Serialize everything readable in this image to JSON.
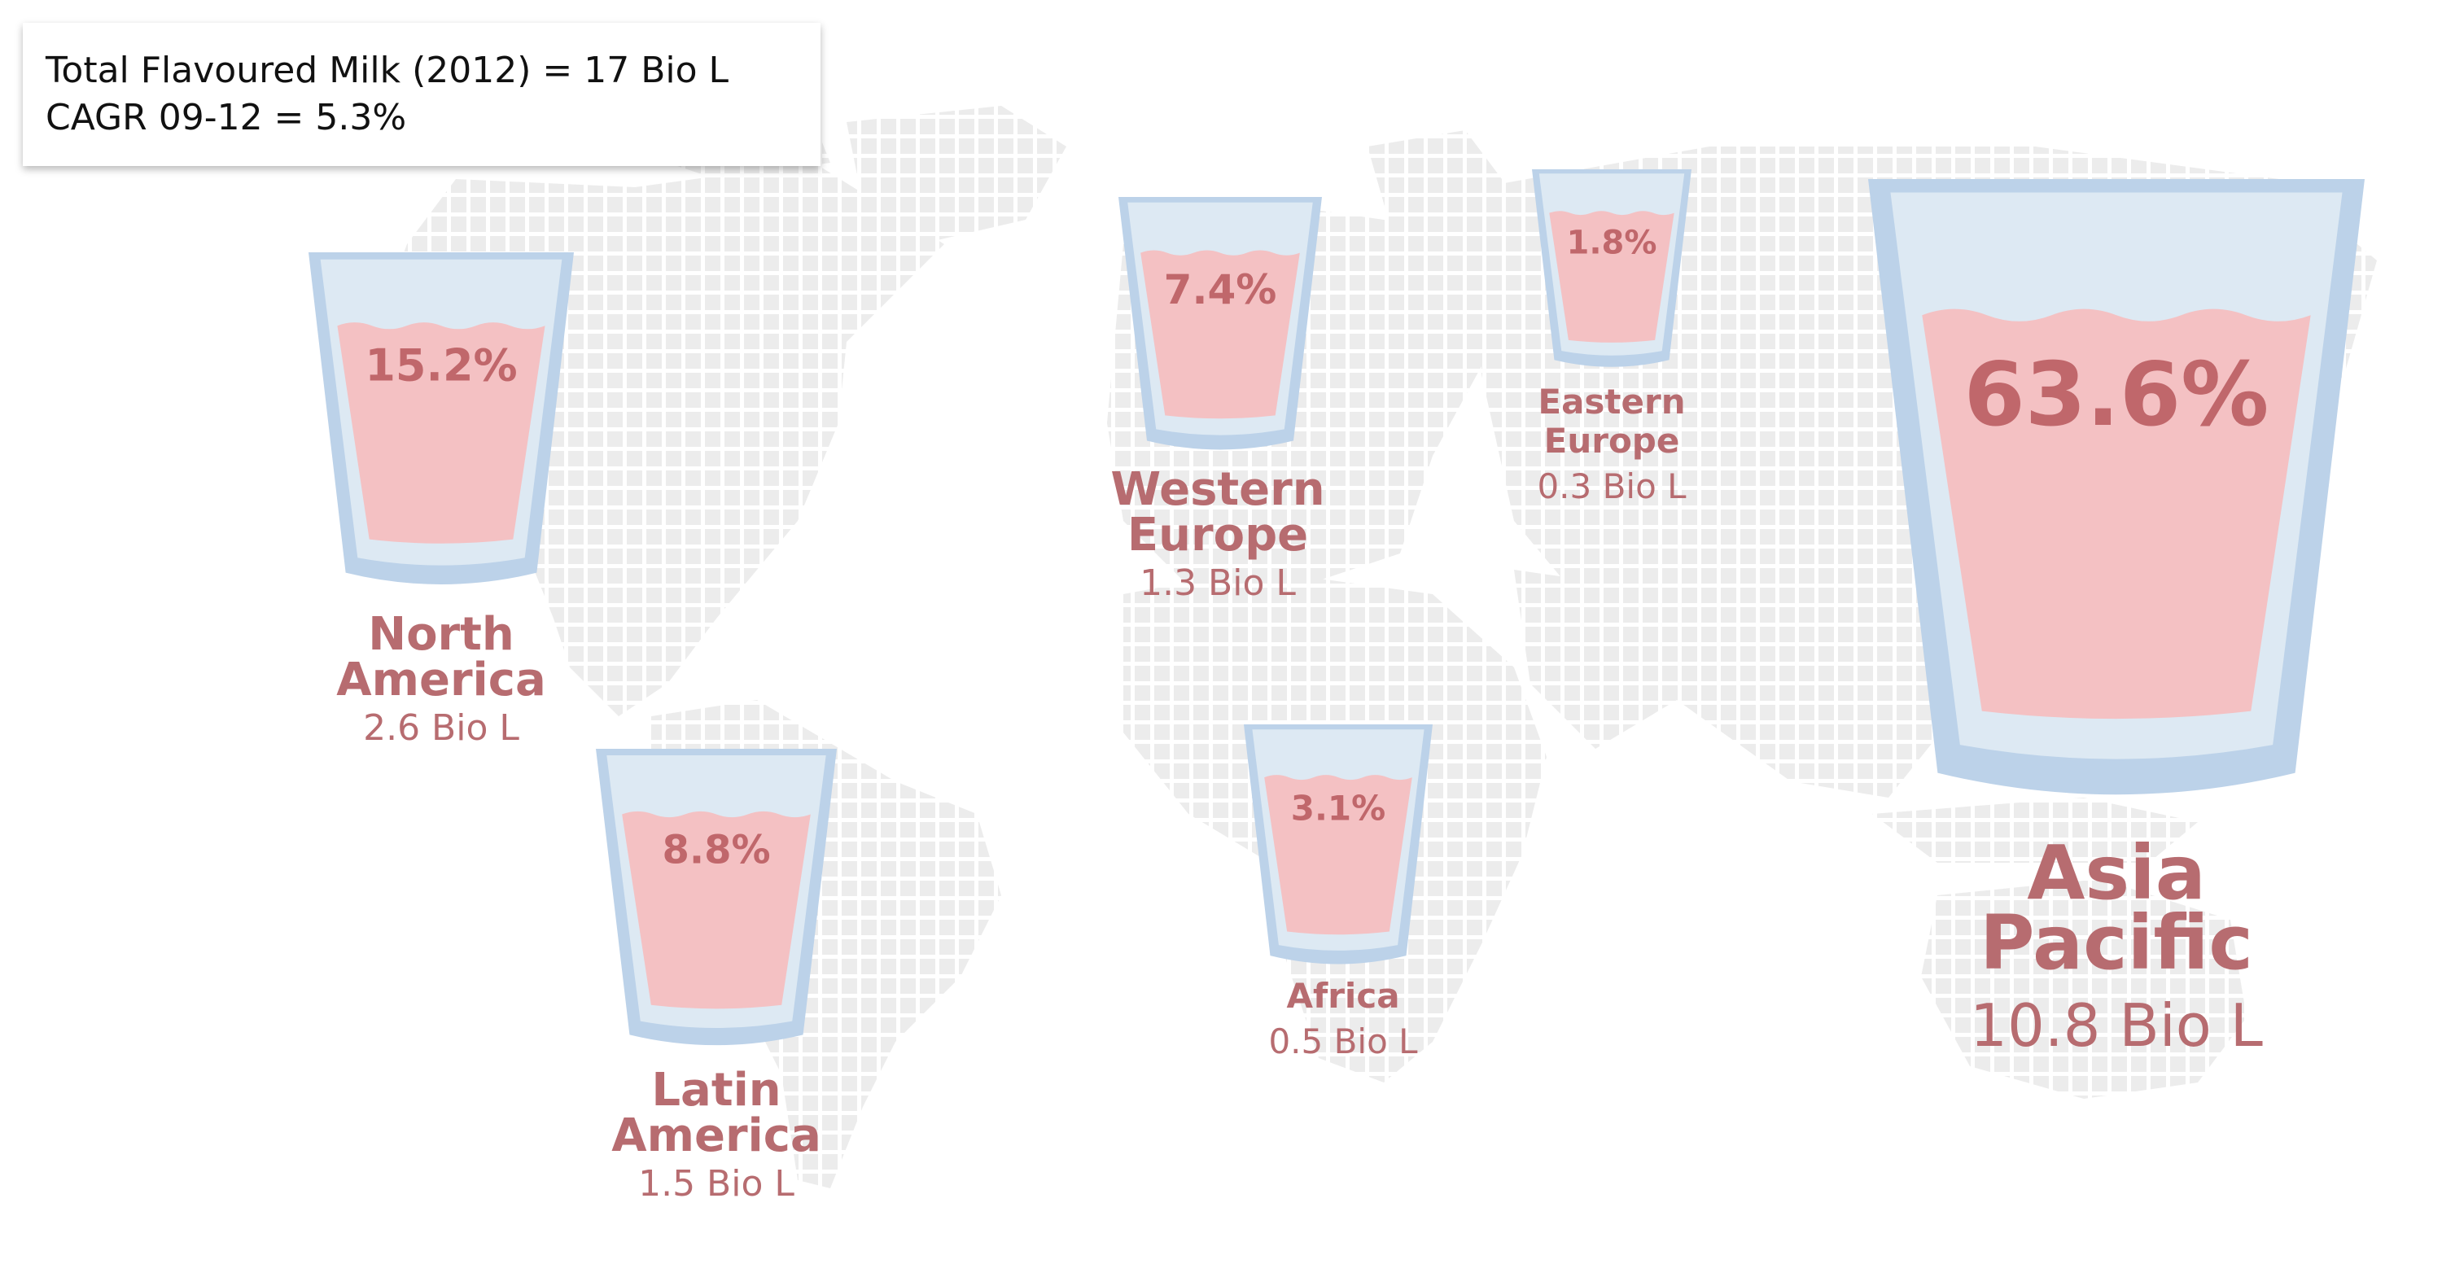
{
  "info_box": {
    "total_line": "Total Flavoured Milk (2012) = 17 Bio L",
    "cagr_line": "CAGR 09-12 = 5.3%"
  },
  "colors": {
    "glass": "#bcd2e9",
    "glass_inner": "#dde9f3",
    "milk": "#f4c1c3",
    "milk_surface": "#fde3e4",
    "percent_text": "#c0676b",
    "label_text": "#b76c70",
    "map_tile": "#ececec"
  },
  "chart_data": {
    "type": "pictogram",
    "title": "",
    "share_unit": "%",
    "volume_unit": "Bio L",
    "regions": [
      {
        "name_line1": "North",
        "name_line2": "America",
        "share_label": "15.2%",
        "share": 15.2,
        "volume_label": "2.6 Bio L",
        "volume": 2.6
      },
      {
        "name_line1": "Latin",
        "name_line2": "America",
        "share_label": "8.8%",
        "share": 8.8,
        "volume_label": "1.5 Bio L",
        "volume": 1.5
      },
      {
        "name_line1": "Western",
        "name_line2": "Europe",
        "share_label": "7.4%",
        "share": 7.4,
        "volume_label": "1.3 Bio L",
        "volume": 1.3
      },
      {
        "name_line1": "Eastern",
        "name_line2": "Europe",
        "share_label": "1.8%",
        "share": 1.8,
        "volume_label": "0.3 Bio L",
        "volume": 0.3
      },
      {
        "name_line1": "Africa",
        "name_line2": "",
        "share_label": "3.1%",
        "share": 3.1,
        "volume_label": "0.5 Bio L",
        "volume": 0.5
      },
      {
        "name_line1": "Asia",
        "name_line2": "Pacific",
        "share_label": "63.6%",
        "share": 63.6,
        "volume_label": "10.8 Bio L",
        "volume": 10.8
      }
    ]
  }
}
